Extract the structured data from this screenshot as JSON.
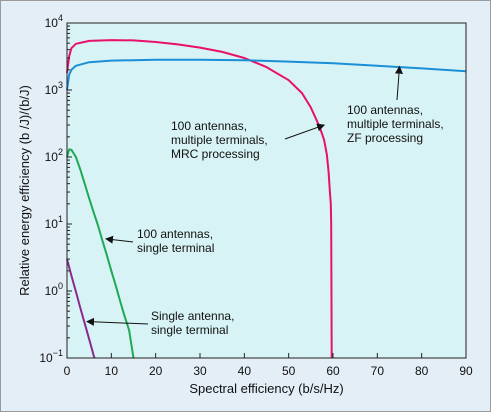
{
  "chart_data": {
    "type": "line",
    "xlabel": "Spectral efficiency (b/s/Hz)",
    "ylabel": "Relative energy efficiency (b /J)/(b/J)",
    "xlim": [
      0,
      90
    ],
    "ylim": [
      0.1,
      10000
    ],
    "yscale": "log",
    "xticks": [
      "0",
      "10",
      "20",
      "30",
      "40",
      "50",
      "60",
      "70",
      "80",
      "90"
    ],
    "yticks": [
      {
        "base": "10",
        "exp": "−1",
        "value": 0.1
      },
      {
        "base": "10",
        "exp": "0",
        "value": 1
      },
      {
        "base": "10",
        "exp": "1",
        "value": 10
      },
      {
        "base": "10",
        "exp": "2",
        "value": 100
      },
      {
        "base": "10",
        "exp": "3",
        "value": 1000
      },
      {
        "base": "10",
        "exp": "4",
        "value": 10000
      }
    ],
    "grid": false,
    "series": [
      {
        "color": "#e8106a",
        "points": [
          [
            0,
            1800
          ],
          [
            0.5,
            3200
          ],
          [
            1,
            4200
          ],
          [
            2,
            4900
          ],
          [
            5,
            5400
          ],
          [
            10,
            5550
          ],
          [
            15,
            5500
          ],
          [
            20,
            5200
          ],
          [
            25,
            4800
          ],
          [
            30,
            4300
          ],
          [
            35,
            3700
          ],
          [
            40,
            3000
          ],
          [
            45,
            2200
          ],
          [
            50,
            1400
          ],
          [
            53,
            900
          ],
          [
            55,
            550
          ],
          [
            57,
            280
          ],
          [
            58,
            180
          ],
          [
            58.6,
            110
          ],
          [
            59,
            60
          ],
          [
            59.3,
            30
          ],
          [
            59.5,
            20
          ],
          [
            59.6,
            10
          ],
          [
            59.7,
            0.1
          ]
        ]
      },
      {
        "color": "#1b8fd6",
        "points": [
          [
            0,
            1000
          ],
          [
            0.5,
            1700
          ],
          [
            1,
            2000
          ],
          [
            2,
            2300
          ],
          [
            5,
            2600
          ],
          [
            10,
            2750
          ],
          [
            20,
            2820
          ],
          [
            30,
            2830
          ],
          [
            40,
            2780
          ],
          [
            50,
            2650
          ],
          [
            60,
            2500
          ],
          [
            70,
            2300
          ],
          [
            80,
            2100
          ],
          [
            90,
            1900
          ]
        ]
      },
      {
        "color": "#1eaa55",
        "points": [
          [
            0,
            100
          ],
          [
            0.5,
            130
          ],
          [
            1,
            128
          ],
          [
            2,
            100
          ],
          [
            3,
            65
          ],
          [
            4,
            40
          ],
          [
            5,
            24
          ],
          [
            6,
            15
          ],
          [
            7,
            9.5
          ],
          [
            8,
            5.6
          ],
          [
            9,
            3.4
          ],
          [
            10,
            2.0
          ],
          [
            11,
            1.2
          ],
          [
            12,
            0.7
          ],
          [
            13,
            0.42
          ],
          [
            14,
            0.26
          ],
          [
            15,
            0.1
          ]
        ]
      },
      {
        "color": "#8a2a8f",
        "points": [
          [
            0,
            3
          ],
          [
            1,
            1.7
          ],
          [
            2,
            0.98
          ],
          [
            3,
            0.56
          ],
          [
            4,
            0.33
          ],
          [
            5,
            0.19
          ],
          [
            6,
            0.11
          ],
          [
            6.2,
            0.1
          ]
        ]
      }
    ],
    "annotations": [
      {
        "lines": [
          "100 antennas,",
          "multiple terminals,",
          "MRC processing"
        ],
        "text_anchor": "start",
        "arrow_to": [
          58,
          300
        ]
      },
      {
        "lines": [
          "100 antennas,",
          "multiple terminals,",
          "ZF processing"
        ],
        "text_anchor": "start",
        "arrow_to": [
          75,
          2230
        ]
      },
      {
        "lines": [
          "100 antennas,",
          "single terminal"
        ],
        "text_anchor": "start",
        "arrow_to": [
          8.8,
          6.0
        ]
      },
      {
        "lines": [
          "Single antenna,",
          "single terminal"
        ],
        "text_anchor": "start",
        "arrow_to": [
          4.5,
          0.35
        ]
      }
    ]
  }
}
